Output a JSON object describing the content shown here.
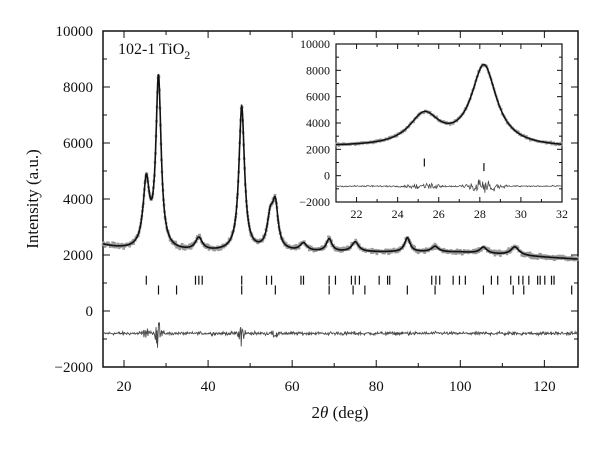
{
  "chart_data": [
    {
      "type": "line",
      "title": "102-1 TiO",
      "title_subscript": "2",
      "xlabel_prefix": "2",
      "xlabel_symbol": "θ",
      "xlabel_suffix": " (deg)",
      "ylabel": "Intensity (a.u.)",
      "xlim": [
        15,
        128
      ],
      "ylim": [
        -2000,
        10000
      ],
      "xticks": [
        20,
        40,
        60,
        80,
        100,
        120
      ],
      "yticks": [
        -2000,
        0,
        2000,
        4000,
        6000,
        8000,
        10000
      ],
      "ytick_labels": [
        "−2000",
        "0",
        "2000",
        "4000",
        "6000",
        "8000",
        "10000"
      ],
      "grid": false,
      "baseline": 2100,
      "peaks": [
        {
          "x": 25.3,
          "height": 2350,
          "width": 0.9
        },
        {
          "x": 28.2,
          "height": 6100,
          "width": 0.75
        },
        {
          "x": 37.8,
          "height": 450,
          "width": 1.0
        },
        {
          "x": 48.0,
          "height": 5150,
          "width": 0.8
        },
        {
          "x": 54.8,
          "height": 1100,
          "width": 0.9
        },
        {
          "x": 56.0,
          "height": 1500,
          "width": 0.8
        },
        {
          "x": 62.7,
          "height": 280,
          "width": 1.0
        },
        {
          "x": 68.8,
          "height": 450,
          "width": 0.8
        },
        {
          "x": 75.0,
          "height": 350,
          "width": 1.0
        },
        {
          "x": 87.4,
          "height": 500,
          "width": 0.8
        },
        {
          "x": 94.0,
          "height": 200,
          "width": 1.0
        },
        {
          "x": 105.5,
          "height": 220,
          "width": 1.0
        },
        {
          "x": 113.0,
          "height": 300,
          "width": 1.2
        }
      ],
      "series": [
        {
          "role": "observed",
          "color": "#9a9a9a"
        },
        {
          "role": "calculated",
          "color": "#111111"
        },
        {
          "role": "difference",
          "color": "#4a4a4a",
          "offset": -800
        }
      ],
      "reflection_rows": [
        {
          "y": 1100,
          "positions": [
            25.3,
            37.0,
            37.8,
            38.6,
            48.0,
            53.9,
            55.1,
            62.1,
            62.7,
            68.8,
            70.3,
            74.1,
            75.0,
            76.0,
            80.7,
            82.7,
            83.2,
            93.2,
            94.2,
            95.1,
            98.3,
            99.8,
            101.2,
            107.4,
            108.9,
            112.0,
            113.9,
            114.9,
            116.3,
            118.4,
            119.0,
            120.1,
            121.7,
            122.3
          ]
        },
        {
          "y": 750,
          "positions": [
            28.2,
            32.5,
            48.0,
            56.0,
            68.8,
            74.5,
            77.3,
            87.4,
            94.0,
            105.5,
            112.6,
            115.1,
            126.5
          ]
        }
      ]
    },
    {
      "type": "line",
      "xlim": [
        21,
        32
      ],
      "ylim": [
        -2000,
        10000
      ],
      "xticks": [
        22,
        24,
        26,
        28,
        30,
        32
      ],
      "yticks": [
        -2000,
        0,
        2000,
        4000,
        6000,
        8000,
        10000
      ],
      "ytick_labels": [
        "−2000",
        "0",
        "2000",
        "4000",
        "6000",
        "8000",
        "10000"
      ],
      "grid": false,
      "baseline": 2100,
      "peaks": [
        {
          "x": 25.3,
          "height": 2350,
          "width": 0.9
        },
        {
          "x": 28.2,
          "height": 6100,
          "width": 0.75
        }
      ],
      "reflection_rows": [
        {
          "y": 1000,
          "positions": [
            25.3
          ]
        },
        {
          "y": 650,
          "positions": [
            28.2
          ]
        }
      ],
      "difference_offset": -800
    }
  ]
}
